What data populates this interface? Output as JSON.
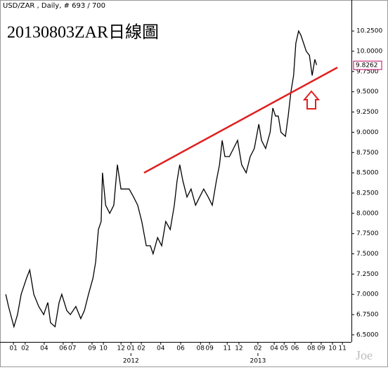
{
  "chart_data": {
    "type": "line",
    "header": "USD/ZAR , Daily, # 693 / 700",
    "title": "20130803ZAR日線圖",
    "watermark": "Joe",
    "series": [
      {
        "name": "USD/ZAR",
        "color": "#000000",
        "x": [
          5,
          11,
          23,
          31,
          39,
          51,
          58,
          67,
          78,
          89,
          98,
          104,
          114,
          123,
          129,
          140,
          148,
          160,
          171,
          179,
          188,
          198,
          204,
          210,
          216,
          219,
          226,
          235,
          244,
          252,
          260,
          269,
          278,
          288,
          297,
          306,
          316,
          325,
          331,
          341,
          350,
          359,
          369,
          378,
          384,
          390,
          397,
          406,
          415,
          425,
          434,
          443,
          453,
          462,
          471,
          478,
          484,
          490,
          500,
          509,
          518,
          527,
          537,
          546,
          555,
          565,
          571,
          580,
          590,
          596,
          602,
          608,
          614,
          624,
          630,
          636,
          642,
          647,
          653,
          658,
          664,
          670,
          677,
          683,
          689,
          693
        ],
        "values": [
          7.0,
          6.85,
          6.6,
          6.75,
          7.0,
          7.2,
          7.3,
          7.0,
          6.85,
          6.75,
          6.9,
          6.65,
          6.6,
          6.9,
          7.0,
          6.8,
          6.75,
          6.85,
          6.7,
          6.8,
          7.0,
          7.2,
          7.4,
          7.8,
          7.9,
          8.5,
          8.1,
          8.0,
          8.1,
          8.6,
          8.3,
          8.3,
          8.3,
          8.2,
          8.1,
          7.9,
          7.6,
          7.6,
          7.5,
          7.7,
          7.6,
          7.9,
          7.8,
          8.1,
          8.4,
          8.6,
          8.4,
          8.2,
          8.3,
          8.1,
          8.2,
          8.3,
          8.2,
          8.1,
          8.4,
          8.6,
          8.9,
          8.7,
          8.7,
          8.8,
          8.9,
          8.6,
          8.5,
          8.7,
          8.8,
          9.1,
          8.9,
          8.8,
          9.0,
          9.3,
          9.2,
          9.2,
          9.0,
          8.95,
          9.2,
          9.5,
          9.7,
          10.1,
          10.25,
          10.2,
          10.1,
          10.0,
          9.95,
          9.7,
          9.9,
          9.83
        ]
      }
    ],
    "trendline": {
      "x": [
        311,
        739
      ],
      "values": [
        8.5,
        9.8
      ],
      "color": "#e02020"
    },
    "last_price": 9.8262,
    "xlim": [
      0,
      770
    ],
    "ylim": [
      6.43,
      10.52
    ],
    "yticks": [
      {
        "value": 6.5,
        "label": "6.5000"
      },
      {
        "value": 6.75,
        "label": "6.7500"
      },
      {
        "value": 7.0,
        "label": "7.0000"
      },
      {
        "value": 7.25,
        "label": "7.2500"
      },
      {
        "value": 7.5,
        "label": "7.5000"
      },
      {
        "value": 7.75,
        "label": "7.7500"
      },
      {
        "value": 8.0,
        "label": "8.0000"
      },
      {
        "value": 8.25,
        "label": "8.2500"
      },
      {
        "value": 8.5,
        "label": "8.5000"
      },
      {
        "value": 8.75,
        "label": "8.7500"
      },
      {
        "value": 9.0,
        "label": "9.0000"
      },
      {
        "value": 9.25,
        "label": "9.2500"
      },
      {
        "value": 9.5,
        "label": "9.5000"
      },
      {
        "value": 9.75,
        "label": "9.7500"
      },
      {
        "value": 10.0,
        "label": "10.0000"
      },
      {
        "value": 10.25,
        "label": "10.2500"
      }
    ],
    "xticks": [
      {
        "value": 22,
        "label": "01"
      },
      {
        "value": 48,
        "label": "02"
      },
      {
        "value": 90,
        "label": "04"
      },
      {
        "value": 132,
        "label": "06"
      },
      {
        "value": 152,
        "label": "07"
      },
      {
        "value": 196,
        "label": "09"
      },
      {
        "value": 221,
        "label": "10"
      },
      {
        "value": 260,
        "label": "12"
      },
      {
        "value": 282,
        "label": "01"
      },
      {
        "value": 305,
        "label": "02"
      },
      {
        "value": 348,
        "label": "04"
      },
      {
        "value": 392,
        "label": "06"
      },
      {
        "value": 436,
        "label": "08"
      },
      {
        "value": 456,
        "label": "09"
      },
      {
        "value": 495,
        "label": "11"
      },
      {
        "value": 521,
        "label": "12"
      },
      {
        "value": 563,
        "label": "02"
      },
      {
        "value": 599,
        "label": "04"
      },
      {
        "value": 621,
        "label": "05"
      },
      {
        "value": 645,
        "label": "06"
      },
      {
        "value": 681,
        "label": "08"
      },
      {
        "value": 703,
        "label": "09"
      },
      {
        "value": 728,
        "label": "10"
      },
      {
        "value": 750,
        "label": "11"
      }
    ],
    "year_ticks": [
      {
        "value": 282,
        "label": "2012"
      },
      {
        "value": 563,
        "label": "2013"
      }
    ]
  }
}
